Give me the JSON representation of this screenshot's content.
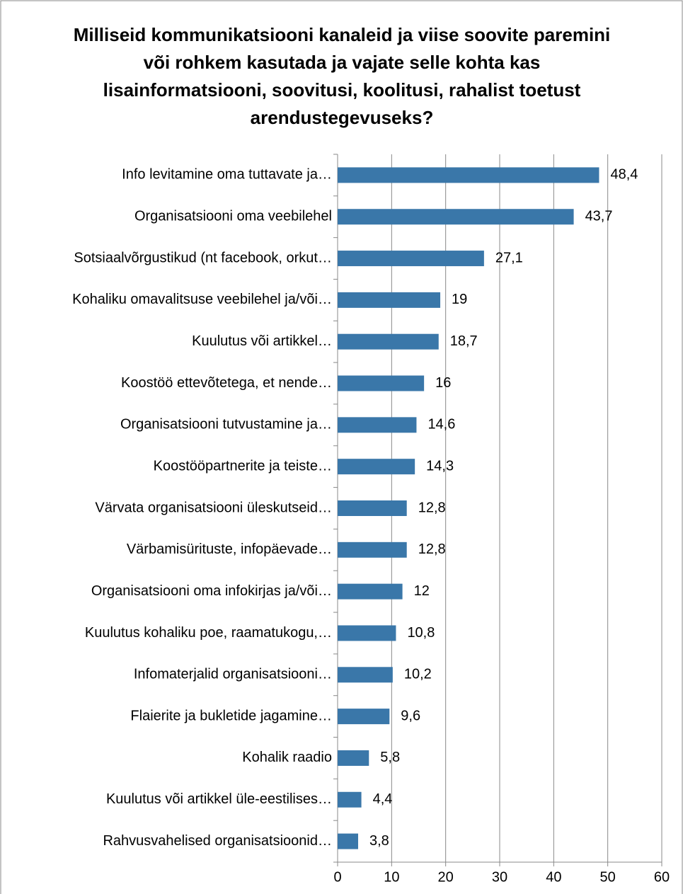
{
  "chart_data": {
    "type": "bar",
    "orientation": "horizontal",
    "title": "Milliseid kommunikatsiooni kanaleid ja viise soovite paremini või rohkem kasutada ja vajate selle kohta kas lisainformatsiooni, soovitusi, koolitusi, rahalist toetust arendustegevuseks?",
    "categories": [
      "Info levitamine oma tuttavate ja…",
      "Organisatsiooni oma veebilehel",
      "Sotsiaalvõrgustikud (nt facebook, orkut…",
      "Kohaliku omavalitsuse veebilehel ja/või…",
      "Kuulutus või artikkel…",
      "Koostöö ettevõtetega, et nende…",
      "Organisatsiooni tutvustamine ja…",
      "Koostööpartnerite ja teiste…",
      "Värvata organisatsiooni üleskutseid…",
      "Värbamisürituste, infopäevade…",
      "Organisatsiooni oma infokirjas ja/või…",
      "Kuulutus kohaliku poe, raamatukogu,…",
      "Infomaterjalid organisatsiooni…",
      "Flaierite ja bukletide jagamine…",
      "Kohalik raadio",
      "Kuulutus või artikkel üle-eestilises…",
      "Rahvusvahelised organisatsioonid…"
    ],
    "values": [
      48.4,
      43.7,
      27.1,
      19,
      18.7,
      16,
      14.6,
      14.3,
      12.8,
      12.8,
      12,
      10.8,
      10.2,
      9.6,
      5.8,
      4.4,
      3.8
    ],
    "value_labels": [
      "48,4",
      "43,7",
      "27,1",
      "19",
      "18,7",
      "16",
      "14,6",
      "14,3",
      "12,8",
      "12,8",
      "12",
      "10,8",
      "10,2",
      "9,6",
      "5,8",
      "4,4",
      "3,8"
    ],
    "color": "#3a77a9",
    "xlim": [
      0,
      60
    ],
    "xticks": [
      0,
      10,
      20,
      30,
      40,
      50,
      60
    ],
    "grid": true
  }
}
